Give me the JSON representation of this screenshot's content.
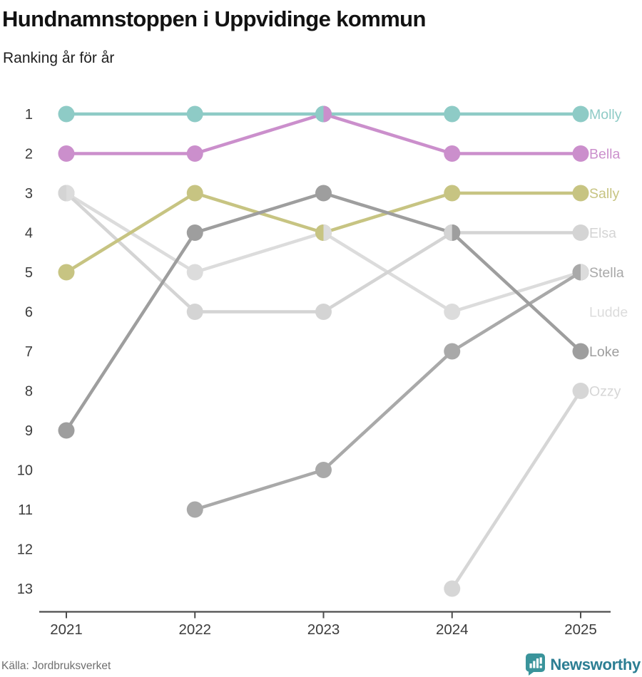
{
  "header": {
    "title": "Hundnamnstoppen i Uppvidinge kommun",
    "subtitle": "Ranking år för år"
  },
  "footer": {
    "source": "Källa: Jordbruksverket",
    "brand": "Newsworthy"
  },
  "palette": {
    "axis_line": "#4d4d4d",
    "tick_text": "#3c3c3c",
    "title_text": "#121212",
    "source_text": "#6f6f6f",
    "brand_text": "#2c7e93",
    "brand_icon": "#3a949b"
  },
  "chart_data": {
    "type": "line",
    "variant": "bump-ranking",
    "title": "Hundnamnstoppen i Uppvidinge kommun",
    "subtitle": "Ranking år för år",
    "x": [
      2021,
      2022,
      2023,
      2024,
      2025
    ],
    "y_ticks": [
      1,
      2,
      3,
      4,
      5,
      6,
      7,
      8,
      9,
      10,
      11,
      12,
      13
    ],
    "y_axis_inverted": true,
    "grid": false,
    "legend_position": "right-of-last-point",
    "series": [
      {
        "name": "Molly",
        "color": "#8ecbc6",
        "ranks": [
          1,
          1,
          1,
          1,
          1
        ],
        "label_row": 1
      },
      {
        "name": "Bella",
        "color": "#cb8fcc",
        "ranks": [
          2,
          2,
          1,
          2,
          2
        ],
        "label_row": 2
      },
      {
        "name": "Sally",
        "color": "#c7c482",
        "ranks": [
          5,
          3,
          4,
          3,
          3
        ],
        "label_row": 3
      },
      {
        "name": "Elsa",
        "color": "#d4d4d4",
        "ranks": [
          3,
          6,
          6,
          4,
          4
        ],
        "label_row": 4
      },
      {
        "name": "Stella",
        "color": "#a9a9a9",
        "ranks": [
          null,
          11,
          10,
          7,
          5
        ],
        "label_row": 5
      },
      {
        "name": "Ludde",
        "color": "#dcdcdc",
        "ranks": [
          3,
          5,
          4,
          6,
          5
        ],
        "label_row": 6
      },
      {
        "name": "Loke",
        "color": "#9e9e9e",
        "ranks": [
          9,
          4,
          3,
          4,
          7
        ],
        "label_row": 7
      },
      {
        "name": "Ozzy",
        "color": "#d6d6d6",
        "ranks": [
          null,
          null,
          null,
          13,
          8
        ],
        "label_row": 8
      }
    ],
    "ties": [
      {
        "year": 2021,
        "rank": 3,
        "left": "Elsa",
        "right": "Ludde"
      },
      {
        "year": 2023,
        "rank": 1,
        "left": "Molly",
        "right": "Bella"
      },
      {
        "year": 2023,
        "rank": 4,
        "left": "Sally",
        "right": "Ludde"
      },
      {
        "year": 2024,
        "rank": 4,
        "left": "Elsa",
        "right": "Loke"
      },
      {
        "year": 2025,
        "rank": 5,
        "left": "Stella",
        "right": "Ludde"
      }
    ],
    "z_order": [
      "Ozzy",
      "Ludde",
      "Elsa",
      "Sally",
      "Stella",
      "Loke",
      "Bella",
      "Molly"
    ]
  }
}
